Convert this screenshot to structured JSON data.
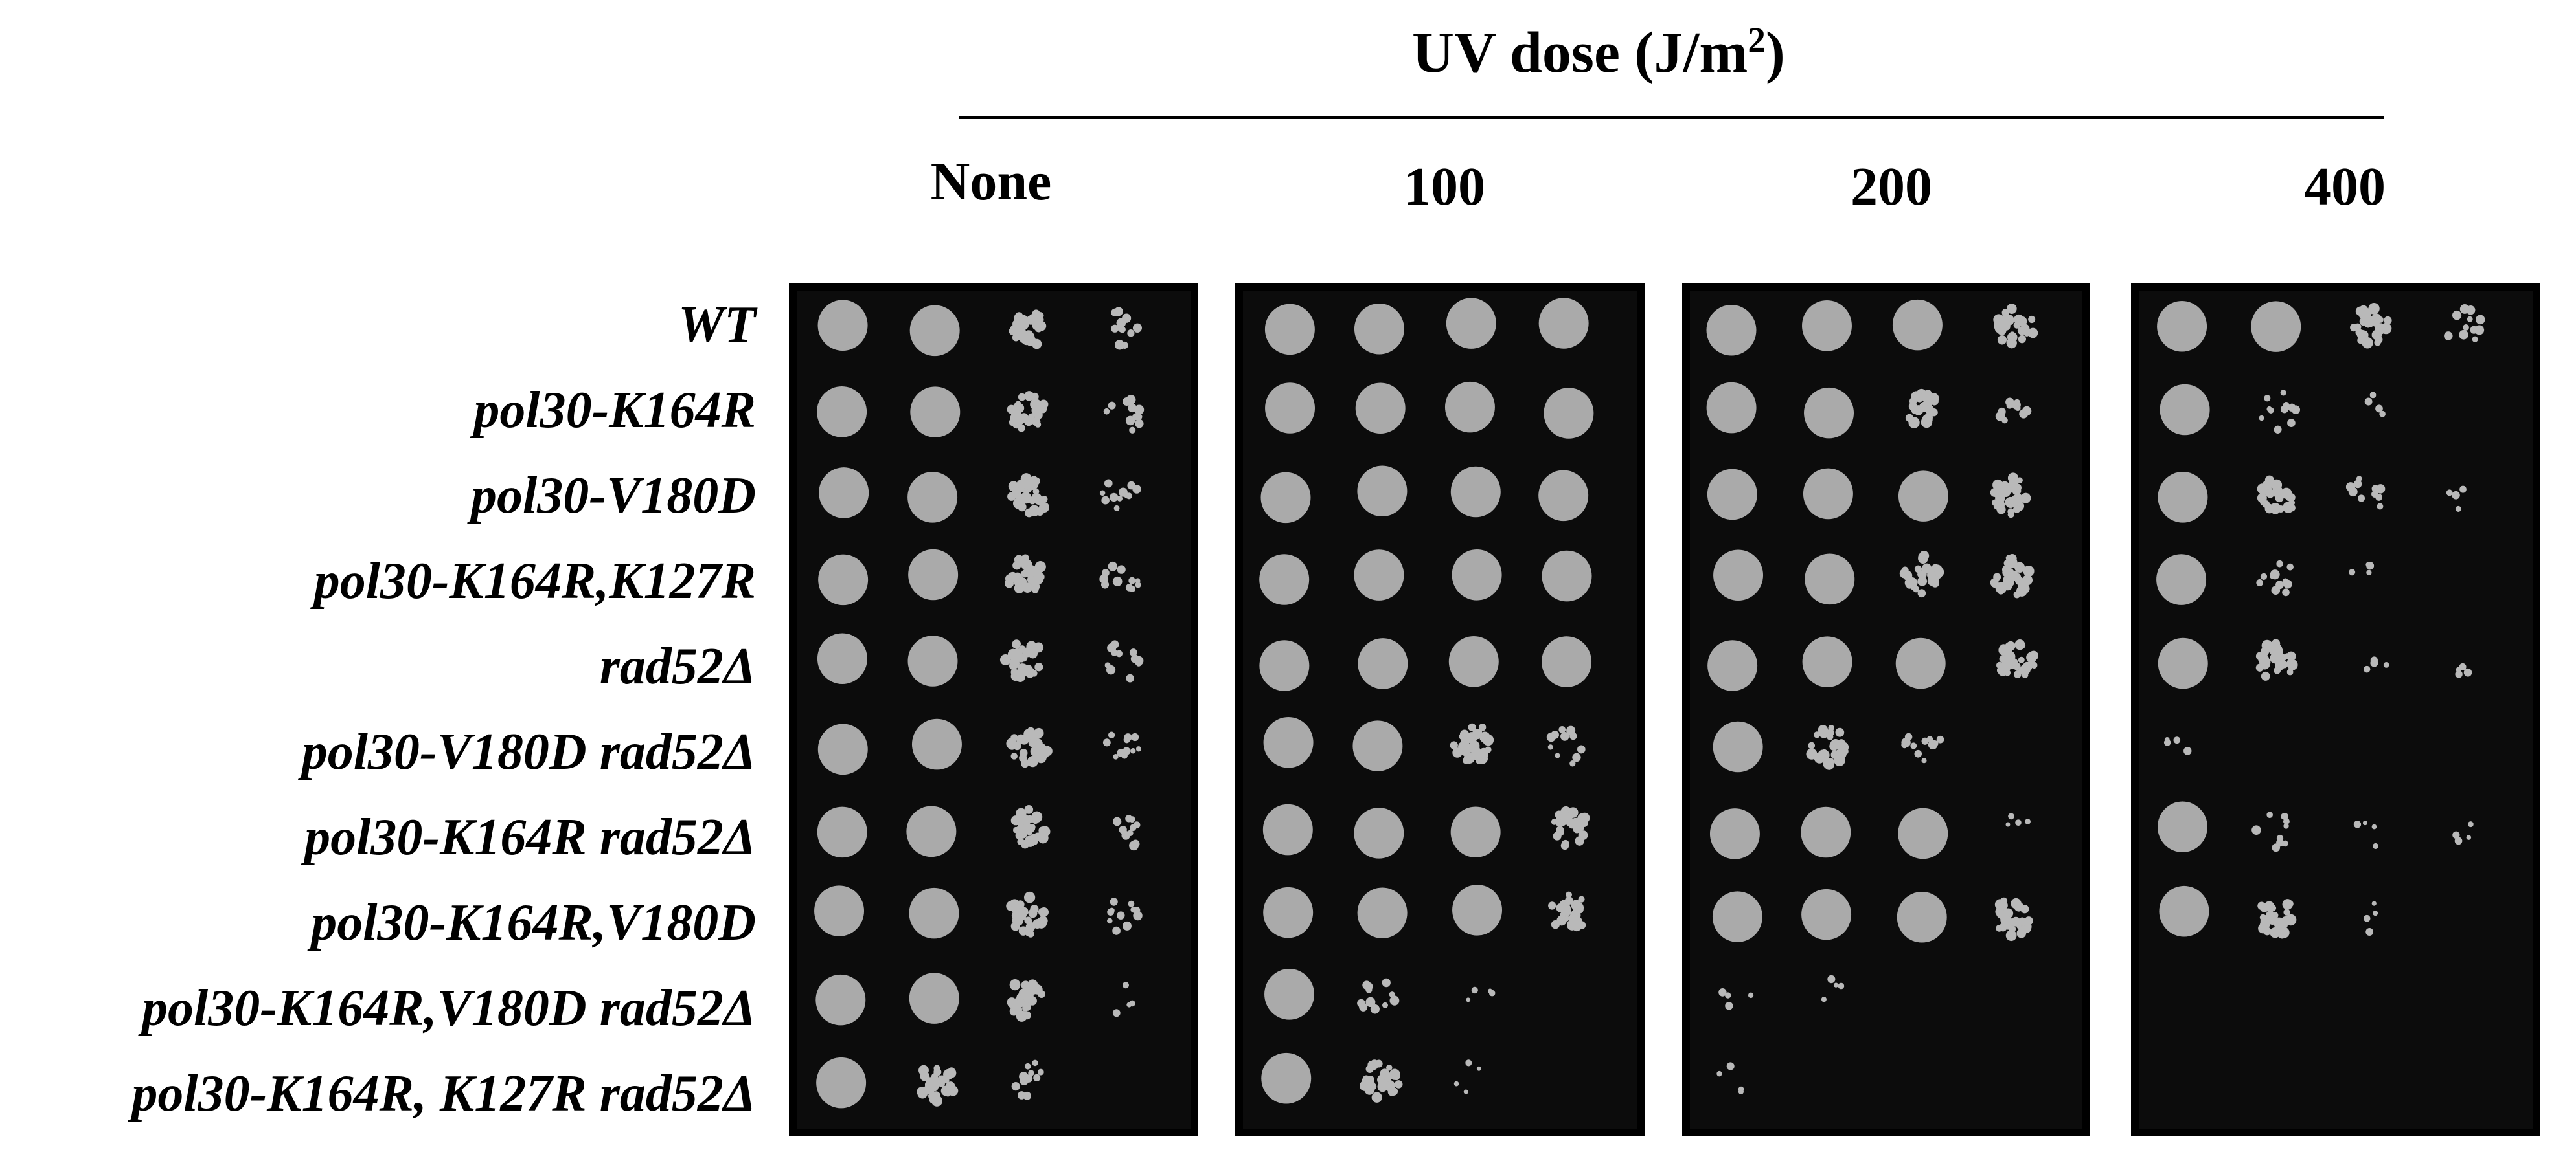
{
  "header": {
    "title_prefix": "UV dose (J/m",
    "title_sup": "2",
    "title_suffix": ")"
  },
  "doses": [
    "None",
    "100",
    "200",
    "400"
  ],
  "strains": [
    "WT",
    "pol30-K164R",
    "pol30-V180D",
    "pol30-K164R,K127R",
    "rad52Δ",
    "pol30-V180D rad52Δ",
    "pol30-K164R rad52Δ",
    "pol30-K164R,V180D",
    "pol30-K164R,V180D rad52Δ",
    "pol30-K164R, K127R rad52Δ"
  ],
  "colors": {
    "plate": "#0c0c0c",
    "spot": "#b9b9b9"
  },
  "growth": [
    [
      [
        4,
        4,
        3,
        2
      ],
      [
        4,
        4,
        3,
        2
      ],
      [
        4,
        4,
        3,
        2
      ],
      [
        4,
        4,
        3,
        2
      ],
      [
        4,
        4,
        3,
        2
      ],
      [
        4,
        4,
        3,
        2
      ],
      [
        4,
        4,
        3,
        2
      ],
      [
        4,
        4,
        3,
        2
      ],
      [
        4,
        4,
        3,
        1
      ],
      [
        4,
        3,
        2,
        0
      ]
    ],
    [
      [
        4,
        4,
        4,
        4
      ],
      [
        4,
        4,
        4,
        4
      ],
      [
        4,
        4,
        4,
        4
      ],
      [
        4,
        4,
        4,
        4
      ],
      [
        4,
        4,
        4,
        4
      ],
      [
        4,
        4,
        3,
        2
      ],
      [
        4,
        4,
        4,
        3
      ],
      [
        4,
        4,
        4,
        3
      ],
      [
        4,
        2,
        1,
        0
      ],
      [
        4,
        3,
        1,
        0
      ]
    ],
    [
      [
        4,
        4,
        4,
        3
      ],
      [
        4,
        4,
        3,
        2
      ],
      [
        4,
        4,
        4,
        3
      ],
      [
        4,
        4,
        3,
        3
      ],
      [
        4,
        4,
        4,
        3
      ],
      [
        4,
        3,
        2,
        0
      ],
      [
        4,
        4,
        4,
        1
      ],
      [
        4,
        4,
        4,
        3
      ],
      [
        1,
        1,
        0,
        0
      ],
      [
        1,
        0,
        0,
        0
      ]
    ],
    [
      [
        4,
        4,
        3,
        2
      ],
      [
        4,
        2,
        1,
        0
      ],
      [
        4,
        3,
        2,
        1
      ],
      [
        4,
        2,
        1,
        0
      ],
      [
        4,
        3,
        1,
        1
      ],
      [
        1,
        0,
        0,
        0
      ],
      [
        4,
        2,
        1,
        1
      ],
      [
        4,
        3,
        1,
        0
      ],
      [
        0,
        0,
        0,
        0
      ],
      [
        0,
        0,
        0,
        0
      ]
    ]
  ]
}
